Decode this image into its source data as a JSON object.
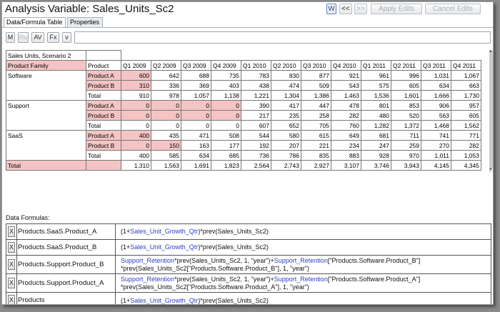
{
  "window": {
    "title": "Analysis Variable: Sales_Units_Sc2"
  },
  "header_buttons": {
    "w": "W",
    "prev": "<<",
    "next": ">>",
    "apply": "Apply Edits",
    "cancel": "Cancel Edits"
  },
  "tabs": [
    {
      "label": "Data/Formula Table",
      "active": true
    },
    {
      "label": "Properties",
      "active": false
    }
  ],
  "toolbar": {
    "m": "M",
    "ru": "Ru",
    "av": "AV",
    "fx": "Fx",
    "v": "v",
    "formula_value": ""
  },
  "grid": {
    "caption": "Sales Units, Scenario 2",
    "header_family": "Product Family",
    "header_product": "Product",
    "columns": [
      "Q1 2009",
      "Q2 2009",
      "Q3 2009",
      "Q4 2009",
      "Q1 2010",
      "Q2 2010",
      "Q3 2010",
      "Q4 2010",
      "Q1 2011",
      "Q2 2011",
      "Q3 2011",
      "Q4 2011"
    ],
    "rows": [
      {
        "family": "Software",
        "product": "Product A",
        "pink_product": true,
        "pink_cells": 1,
        "values": [
          "600",
          "642",
          "688",
          "735",
          "783",
          "830",
          "877",
          "921",
          "961",
          "996",
          "1,031",
          "1,067"
        ]
      },
      {
        "family": "",
        "product": "Product B",
        "pink_product": true,
        "pink_cells": 1,
        "values": [
          "310",
          "336",
          "369",
          "403",
          "438",
          "474",
          "509",
          "543",
          "575",
          "605",
          "634",
          "663"
        ]
      },
      {
        "family": "",
        "product": "Total",
        "pink_product": false,
        "pink_cells": 0,
        "values": [
          "910",
          "978",
          "1,057",
          "1,138",
          "1,221",
          "1,304",
          "1,386",
          "1,463",
          "1,536",
          "1,601",
          "1,666",
          "1,730"
        ]
      },
      {
        "family": "Support",
        "product": "Product A",
        "pink_product": true,
        "pink_cells": 4,
        "values": [
          "0",
          "0",
          "0",
          "0",
          "390",
          "417",
          "447",
          "478",
          "801",
          "853",
          "906",
          "957"
        ]
      },
      {
        "family": "",
        "product": "Product B",
        "pink_product": true,
        "pink_cells": 4,
        "values": [
          "0",
          "0",
          "0",
          "0",
          "217",
          "235",
          "258",
          "282",
          "480",
          "520",
          "563",
          "605"
        ]
      },
      {
        "family": "",
        "product": "Total",
        "pink_product": false,
        "pink_cells": 0,
        "values": [
          "0",
          "0",
          "0",
          "0",
          "607",
          "652",
          "705",
          "760",
          "1,282",
          "1,372",
          "1,468",
          "1,562"
        ]
      },
      {
        "family": "SaaS",
        "product": "Product A",
        "pink_product": true,
        "pink_cells": 1,
        "values": [
          "400",
          "435",
          "471",
          "508",
          "544",
          "580",
          "615",
          "649",
          "681",
          "711",
          "741",
          "771"
        ]
      },
      {
        "family": "",
        "product": "Product B",
        "pink_product": true,
        "pink_cells": 2,
        "values": [
          "0",
          "150",
          "163",
          "177",
          "192",
          "207",
          "221",
          "234",
          "247",
          "259",
          "270",
          "282"
        ]
      },
      {
        "family": "",
        "product": "Total",
        "pink_product": false,
        "pink_cells": 0,
        "values": [
          "400",
          "585",
          "634",
          "685",
          "736",
          "786",
          "835",
          "883",
          "928",
          "970",
          "1,011",
          "1,053"
        ]
      }
    ],
    "total_row": {
      "label": "Total",
      "values": [
        "1,310",
        "1,563",
        "1,691",
        "1,823",
        "2,564",
        "2,743",
        "2,927",
        "3,107",
        "3,746",
        "3,943",
        "4,145",
        "4,345"
      ]
    }
  },
  "formulas": {
    "label": "Data Formulas:",
    "items": [
      {
        "x": "X",
        "name": "Products.SaaS.Product_A",
        "lines": [
          [
            {
              "t": "(1+"
            },
            {
              "t": "Sales_Unit_Growth_Qtr",
              "c": "blue"
            },
            {
              "t": ")*prev(Sales_Units_Sc2)"
            }
          ]
        ]
      },
      {
        "x": "X",
        "name": "Products.SaaS.Product_B",
        "lines": [
          [
            {
              "t": "(1+"
            },
            {
              "t": "Sales_Unit_Growth_Qtr",
              "c": "blue"
            },
            {
              "t": ")*prev(Sales_Units_Sc2)"
            }
          ]
        ]
      },
      {
        "x": "X",
        "name": "Products.Support.Product_B",
        "lines": [
          [
            {
              "t": "Support_Retention",
              "c": "blue"
            },
            {
              "t": "*prev(Sales_Units_Sc2, 1, \"year\")+"
            },
            {
              "t": "Support_Retention",
              "c": "blue"
            },
            {
              "t": "[\"Products.Software.Product_B\"]"
            }
          ],
          [
            {
              "t": "*prev(Sales_Units_Sc2[\"Products.Software.Product_B\"], 1, \"year\")"
            }
          ]
        ]
      },
      {
        "x": "X",
        "name": "Products.Support.Product_A",
        "lines": [
          [
            {
              "t": "Support_Retention",
              "c": "blue"
            },
            {
              "t": "*prev(Sales_Units_Sc2, 1, \"year\")+"
            },
            {
              "t": "Support_Retention",
              "c": "blue"
            },
            {
              "t": "[\"Products.Software.Product_A\"]"
            }
          ],
          [
            {
              "t": "*prev(Sales_Units_Sc2[\"Products.Software.Product_A\"], 1, \"year\")"
            }
          ]
        ]
      },
      {
        "x": "X",
        "name": "Products",
        "lines": [
          [
            {
              "t": "(1+"
            },
            {
              "t": "Sales_Unit_Growth_Qtr",
              "c": "blue"
            },
            {
              "t": ")*prev(Sales_Units_Sc2)"
            }
          ]
        ]
      }
    ]
  }
}
